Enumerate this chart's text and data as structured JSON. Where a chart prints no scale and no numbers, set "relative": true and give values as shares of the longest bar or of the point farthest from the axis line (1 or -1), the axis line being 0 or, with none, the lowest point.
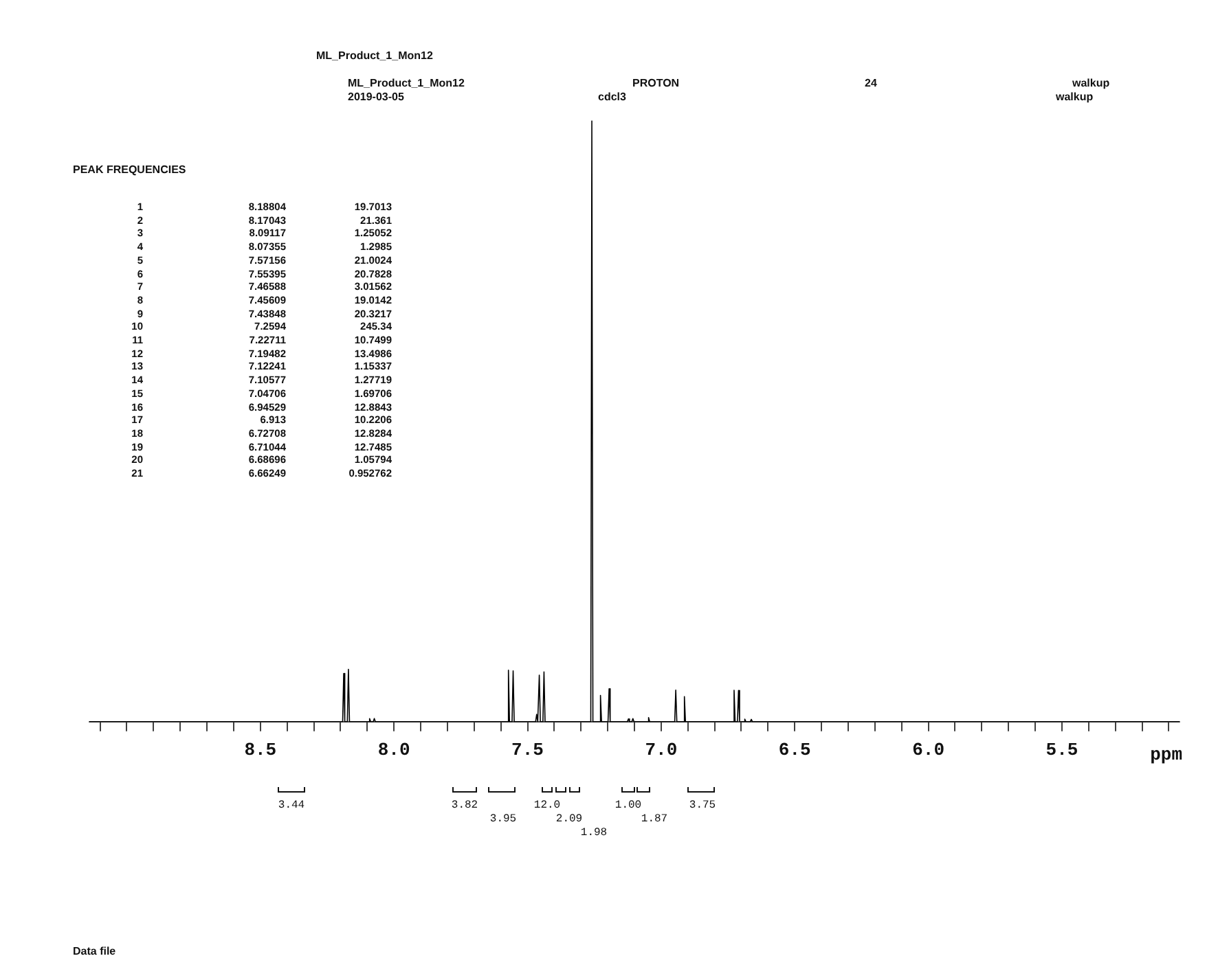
{
  "chart_data": {
    "type": "line",
    "title": "ML_Product_1_Mon12",
    "xlabel": "ppm",
    "annotations": [
      "ML_Product_1_Mon12",
      "2019-03-05",
      "PROTON",
      "cdcl3",
      "24",
      "walkup",
      "walkup",
      "PEAK FREQUENCIES",
      "Data file",
      "1",
      "8.18804",
      "19.7013",
      "2",
      "8.17043",
      "21.361",
      "3",
      "8.09117",
      "1.25052",
      "4",
      "8.07355",
      "1.2985",
      "5",
      "7.57156",
      "21.0024",
      "6",
      "7.55395",
      "20.7828",
      "7",
      "7.46588",
      "3.01562",
      "8",
      "7.45609",
      "19.0142",
      "9",
      "7.43848",
      "20.3217",
      "10",
      "7.2594",
      "245.34",
      "11",
      "7.22711",
      "10.7499",
      "12",
      "7.19482",
      "13.4986",
      "13",
      "7.12241",
      "1.15337",
      "14",
      "7.10577",
      "1.27719",
      "15",
      "7.04706",
      "1.69706",
      "16",
      "6.94529",
      "12.8843",
      "17",
      "6.913",
      "10.2206",
      "18",
      "6.72708",
      "12.8284",
      "19",
      "6.71044",
      "12.7485",
      "20",
      "6.68696",
      "1.05794",
      "21",
      "6.66249",
      "0.952762",
      "3.44",
      "3.82",
      "3.95",
      "12.0",
      "2.09",
      "1.98",
      "1.00",
      "1.87",
      "3.75"
    ],
    "xlim": [
      9.14,
      5.06
    ],
    "xticks": [
      {
        "value": 9.1,
        "label": null
      },
      {
        "value": 9.0,
        "label": null
      },
      {
        "value": 8.9,
        "label": null
      },
      {
        "value": 8.8,
        "label": null
      },
      {
        "value": 8.7,
        "label": null
      },
      {
        "value": 8.6,
        "label": null
      },
      8.5,
      {
        "value": 8.4,
        "label": null
      },
      {
        "value": 8.3,
        "label": null
      },
      {
        "value": 8.2,
        "label": null
      },
      {
        "value": 8.1,
        "label": null
      },
      {
        "value": 8,
        "label": "8.0"
      },
      {
        "value": 7.9,
        "label": null
      },
      {
        "value": 7.8,
        "label": null
      },
      {
        "value": 7.7,
        "label": null
      },
      {
        "value": 7.6,
        "label": null
      },
      7.5,
      {
        "value": 7.4,
        "label": null
      },
      {
        "value": 7.3,
        "label": null
      },
      {
        "value": 7.2,
        "label": null
      },
      {
        "value": 7.1,
        "label": null
      },
      {
        "value": 7,
        "label": "7.0"
      },
      {
        "value": 6.9,
        "label": null
      },
      {
        "value": 6.8,
        "label": null
      },
      {
        "value": 6.7,
        "label": null
      },
      {
        "value": 6.6,
        "label": null
      },
      6.5,
      {
        "value": 6.4,
        "label": null
      },
      {
        "value": 6.3,
        "label": null
      },
      {
        "value": 6.2,
        "label": null
      },
      {
        "value": 6.1,
        "label": null
      },
      {
        "value": 6,
        "label": "6.0"
      },
      {
        "value": 5.9,
        "label": null
      },
      {
        "value": 5.8,
        "label": null
      },
      {
        "value": 5.7,
        "label": null
      },
      {
        "value": 5.6,
        "label": null
      },
      5.5,
      {
        "value": 5.4,
        "label": null
      },
      {
        "value": 5.3,
        "label": null
      },
      {
        "value": 5.2,
        "label": null
      },
      {
        "value": 5.1,
        "label": null
      }
    ],
    "relative": true,
    "marker": "none",
    "line_style": "solid",
    "series": [
      {
        "color": "#000000",
        "x": [
          9.14,
          8.19204,
          8.18804,
          8.18404,
          8.17443,
          8.17043,
          8.16643,
          8.09517,
          8.09117,
          8.08717,
          8.07755,
          8.07355,
          8.06955,
          7.57556,
          7.57156,
          7.56756,
          7.55795,
          7.55395,
          7.54995,
          7.46988,
          7.46588,
          7.46188,
          7.46009,
          7.45609,
          7.45209,
          7.44248,
          7.43848,
          7.43448,
          7.2634,
          7.2594,
          7.2554,
          7.23111,
          7.22711,
          7.22311,
          7.19882,
          7.19482,
          7.19082,
          7.12641,
          7.12241,
          7.11841,
          7.10977,
          7.10577,
          7.10177,
          7.05106,
          7.04706,
          7.04306,
          6.94929,
          6.94529,
          6.94129,
          6.917,
          6.913,
          6.909,
          6.73108,
          6.72708,
          6.72308,
          6.71444,
          6.71044,
          6.70644,
          6.69096,
          6.68696,
          6.68296,
          6.66649,
          6.66249,
          6.65849,
          5.06
        ],
        "values": [
          0,
          0,
          0.0803,
          0,
          0,
          0.0871,
          0,
          0,
          0.0051,
          0,
          0,
          0.0053,
          0,
          0,
          0.0856,
          0,
          0,
          0.0847,
          0,
          0,
          0.0123,
          0,
          0,
          0.0775,
          0,
          0,
          0.0828,
          0,
          0,
          1,
          0,
          0,
          0.0438,
          0,
          0,
          0.055,
          0,
          0,
          0.0047,
          0,
          0,
          0.0052,
          0,
          0,
          0.0069,
          0,
          0,
          0.0525,
          0,
          0,
          0.0417,
          0,
          0,
          0.0523,
          0,
          0,
          0.052,
          0,
          0,
          0.0043,
          0,
          0,
          0.0039,
          0,
          0
        ]
      }
    ]
  }
}
